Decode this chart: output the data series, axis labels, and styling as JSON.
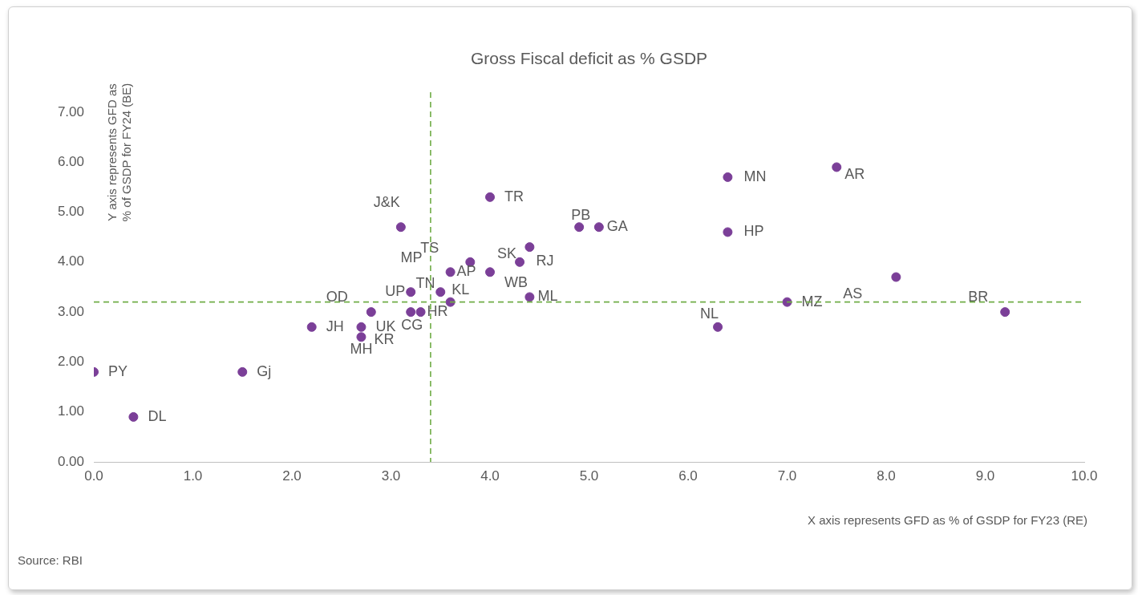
{
  "chart_data": {
    "type": "scatter",
    "title": "Gross Fiscal deficit as % GSDP",
    "xlabel": "X axis represents GFD as % of GSDP for FY23 (RE)",
    "ylabel": "Y axis represents GFD as % of GSDP for FY24 (BE)",
    "series": [
      {
        "color": "#7b3f98",
        "x": [
          0,
          0.4,
          1.5,
          2.2,
          2.7,
          2.7,
          2.8,
          3.2,
          3.3,
          3.2,
          3.6,
          3.5,
          3.6,
          3.8,
          4.0,
          4.0,
          4.3,
          4.4,
          4.4,
          4.9,
          5.1,
          6.4,
          6.4,
          6.3,
          7.0,
          7.5,
          8.1,
          9.2,
          3.1
        ],
        "values": [
          1.8,
          0.9,
          1.8,
          2.7,
          2.7,
          2.5,
          3.0,
          3.0,
          3.0,
          3.4,
          3.2,
          3.4,
          3.8,
          4.0,
          3.8,
          5.3,
          4.0,
          4.3,
          3.3,
          4.7,
          4.7,
          5.7,
          4.6,
          2.7,
          3.2,
          5.9,
          3.7,
          3.0,
          4.7
        ]
      }
    ],
    "annotations": [
      {
        "text": "PY",
        "x": 0,
        "y": 1.8
      },
      {
        "text": "DL",
        "x": 0.4,
        "y": 0.9
      },
      {
        "text": "Gj",
        "x": 1.5,
        "y": 1.8
      },
      {
        "text": "JH",
        "x": 2.2,
        "y": 2.7
      },
      {
        "text": "UK",
        "x": 2.7,
        "y": 2.7
      },
      {
        "text": "MH",
        "x": 2.7,
        "y": 2.5
      },
      {
        "text": "KR",
        "x": 2.7,
        "y": 2.5
      },
      {
        "text": "OD",
        "x": 2.8,
        "y": 3.0
      },
      {
        "text": "CG",
        "x": 3.2,
        "y": 3.0
      },
      {
        "text": "HR",
        "x": 3.3,
        "y": 3.0
      },
      {
        "text": "UP",
        "x": 3.2,
        "y": 3.4
      },
      {
        "text": "TN",
        "x": 3.6,
        "y": 3.2
      },
      {
        "text": "KL",
        "x": 3.5,
        "y": 3.4
      },
      {
        "text": "AP",
        "x": 3.6,
        "y": 3.8
      },
      {
        "text": "MP",
        "x": 3.6,
        "y": 3.8
      },
      {
        "text": "TS",
        "x": 3.8,
        "y": 4.0
      },
      {
        "text": "WB",
        "x": 4.0,
        "y": 3.8
      },
      {
        "text": "TR",
        "x": 4.0,
        "y": 5.3
      },
      {
        "text": "SK",
        "x": 4.3,
        "y": 4.0
      },
      {
        "text": "RJ",
        "x": 4.4,
        "y": 4.3
      },
      {
        "text": "ML",
        "x": 4.4,
        "y": 3.3
      },
      {
        "text": "PB",
        "x": 4.9,
        "y": 4.7
      },
      {
        "text": "GA",
        "x": 5.1,
        "y": 4.7
      },
      {
        "text": "MN",
        "x": 6.4,
        "y": 5.7
      },
      {
        "text": "HP",
        "x": 6.4,
        "y": 4.6
      },
      {
        "text": "NL",
        "x": 6.3,
        "y": 2.7
      },
      {
        "text": "MZ",
        "x": 7.0,
        "y": 3.2
      },
      {
        "text": "AR",
        "x": 7.5,
        "y": 5.9
      },
      {
        "text": "AS",
        "x": 8.1,
        "y": 3.7
      },
      {
        "text": "BR",
        "x": 9.2,
        "y": 3.0
      },
      {
        "text": "J&K",
        "x": 3.1,
        "y": 4.7
      },
      "Source: RBI"
    ],
    "ref_lines": [
      {
        "axis": "x",
        "value": 3.4,
        "color": "#70ad47",
        "line_style": "dashed"
      },
      {
        "axis": "y",
        "value": 3.2,
        "color": "#70ad47",
        "line_style": "dashed"
      }
    ],
    "xlim": [
      0,
      10
    ],
    "xticks": [
      {
        "value": 0,
        "label": "0.0"
      },
      {
        "value": 1,
        "label": "1.0"
      },
      {
        "value": 2,
        "label": "2.0"
      },
      {
        "value": 3,
        "label": "3.0"
      },
      {
        "value": 4,
        "label": "4.0"
      },
      {
        "value": 5,
        "label": "5.0"
      },
      {
        "value": 6,
        "label": "6.0"
      },
      {
        "value": 7,
        "label": "7.0"
      },
      {
        "value": 8,
        "label": "8.0"
      },
      {
        "value": 9,
        "label": "9.0"
      },
      {
        "value": 10,
        "label": "10.0"
      }
    ],
    "ylim": [
      0,
      7.4
    ],
    "yticks": [
      {
        "value": 0,
        "label": "0.00"
      },
      {
        "value": 1,
        "label": "1.00"
      },
      {
        "value": 2,
        "label": "2.00"
      },
      {
        "value": 3,
        "label": "3.00"
      },
      {
        "value": 4,
        "label": "4.00"
      },
      {
        "value": 5,
        "label": "5.00"
      },
      {
        "value": 6,
        "label": "6.00"
      },
      {
        "value": 7,
        "label": "7.00"
      }
    ],
    "grid": false,
    "legend": false,
    "marker": "circle"
  }
}
